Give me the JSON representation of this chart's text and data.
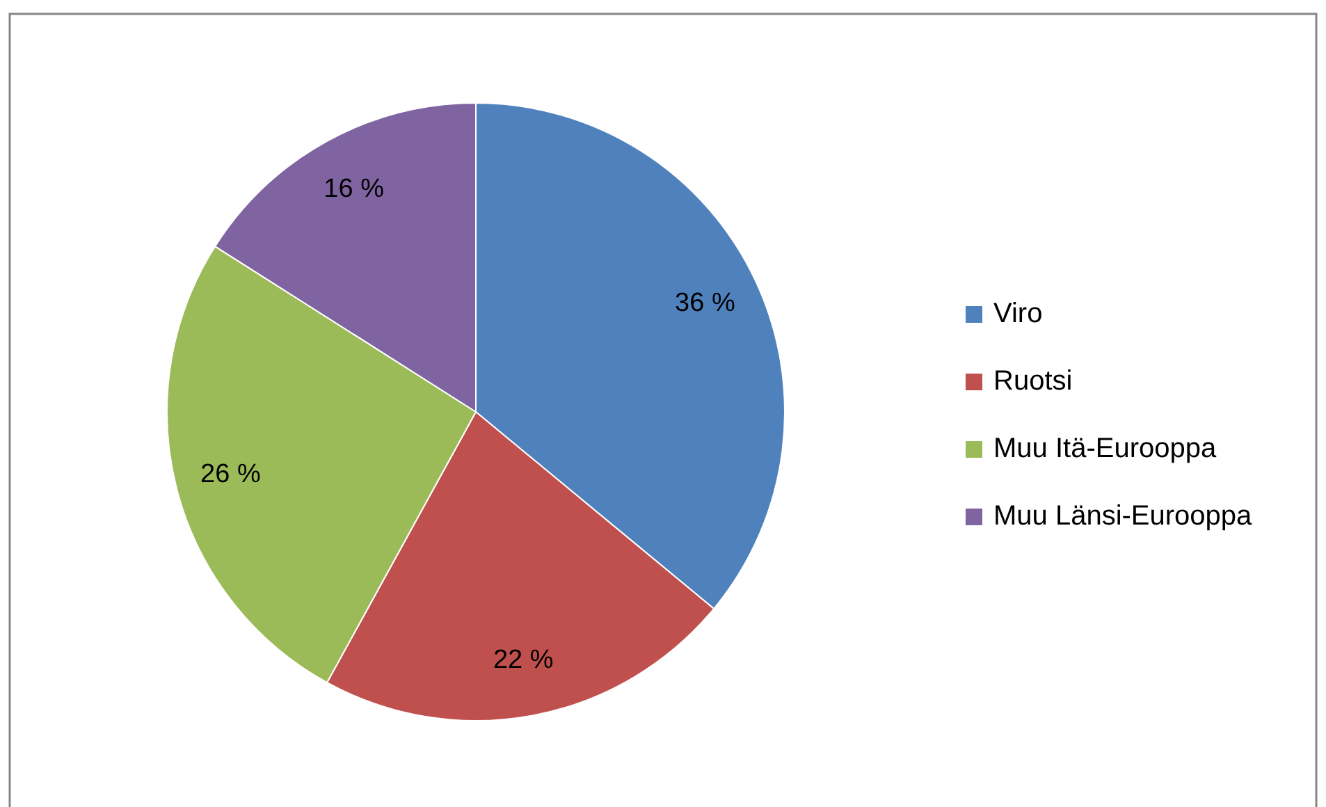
{
  "chart_data": {
    "type": "pie",
    "categories": [
      "Viro",
      "Ruotsi",
      "Muu Itä-Eurooppa",
      "Muu Länsi-Eurooppa"
    ],
    "values": [
      36,
      22,
      26,
      16
    ],
    "colors": [
      "#4f81bd",
      "#c0504d",
      "#9bbb59",
      "#8064a2"
    ],
    "value_labels": [
      "36 %",
      "22 %",
      "26 %",
      "16 %"
    ],
    "legend": "right"
  }
}
